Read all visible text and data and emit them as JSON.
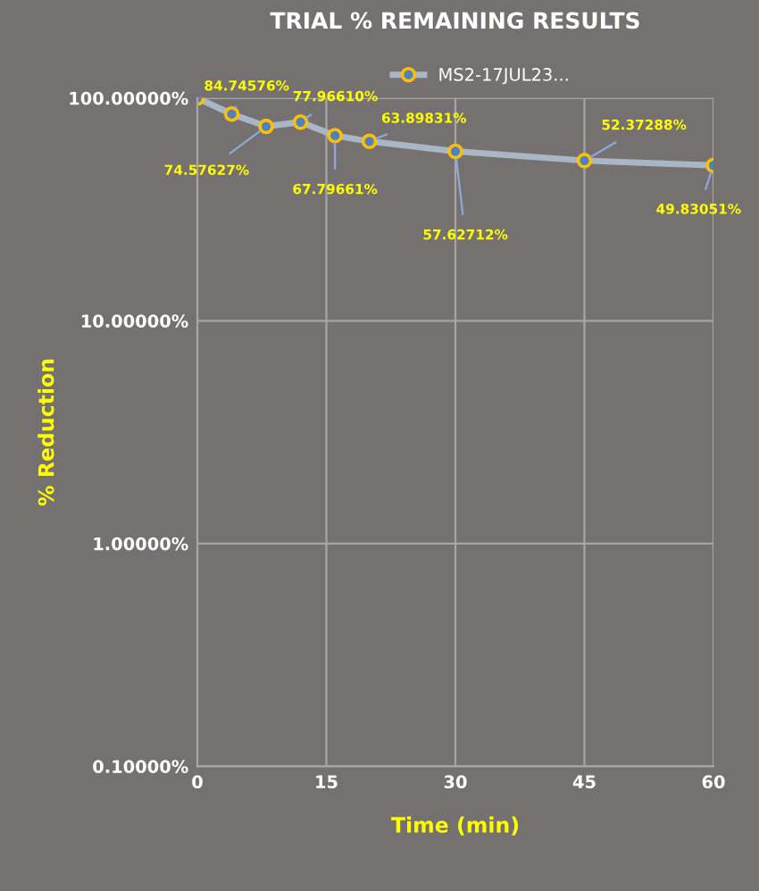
{
  "chart_data": {
    "type": "line",
    "title": "TRIAL % REMAINING RESULTS",
    "xlabel": "Time (min)",
    "ylabel": "% Reduction",
    "x": [
      0,
      4,
      8,
      12,
      16,
      20,
      30,
      45,
      60
    ],
    "series": [
      {
        "name": "MS2-17JUL23...",
        "color": "#a9b6c6",
        "values": [
          100,
          84.74576,
          74.57627,
          77.9661,
          67.79661,
          63.89831,
          57.62712,
          52.37288,
          49.83051
        ],
        "value_labels": [
          null,
          "84.74576%",
          "74.57627%",
          "77.96610%",
          "67.79661%",
          "63.89831%",
          "57.62712%",
          "52.37288%",
          "49.83051%"
        ]
      }
    ],
    "log": "y",
    "xlim": [
      0,
      60
    ],
    "xticks": [
      0,
      15,
      30,
      45,
      60
    ],
    "ylim": [
      0.1,
      100
    ],
    "yticks": [
      {
        "value": 0.1,
        "label": "0.10000%"
      },
      {
        "value": 1,
        "label": "1.00000%"
      },
      {
        "value": 10,
        "label": "10.00000%"
      },
      {
        "value": 100,
        "label": "100.00000%"
      }
    ],
    "grid": true,
    "legend": "top",
    "marker": "circle",
    "line_style": "solid"
  }
}
